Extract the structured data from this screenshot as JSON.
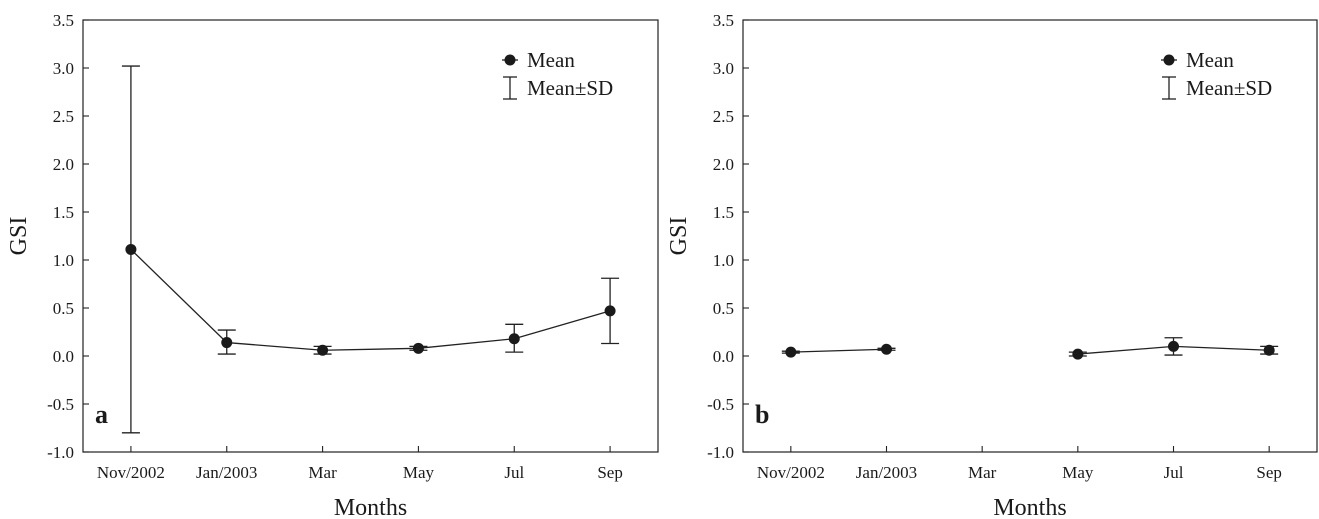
{
  "chart_data": [
    {
      "type": "line",
      "panel_label": "a",
      "xlabel": "Months",
      "ylabel": "GSI",
      "categories": [
        "Nov/2002",
        "Jan/2003",
        "Mar",
        "May",
        "Jul",
        "Sep"
      ],
      "ylim": [
        -1.0,
        3.5
      ],
      "yticks": [
        "-1.0",
        "-0.5",
        "0.0",
        "0.5",
        "1.0",
        "1.5",
        "2.0",
        "2.5",
        "3.0",
        "3.5"
      ],
      "legend": {
        "position": "top-right",
        "mean_label": "Mean",
        "sd_label": "Mean±SD"
      },
      "series": [
        {
          "mean": [
            1.11,
            0.14,
            0.06,
            0.08,
            0.18,
            0.47
          ],
          "lower": [
            -0.8,
            0.02,
            0.02,
            0.06,
            0.04,
            0.13
          ],
          "upper": [
            3.02,
            0.27,
            0.1,
            0.1,
            0.33,
            0.81
          ]
        }
      ]
    },
    {
      "type": "line",
      "panel_label": "b",
      "xlabel": "Months",
      "ylabel": "GSI",
      "categories": [
        "Nov/2002",
        "Jan/2003",
        "Mar",
        "May",
        "Jul",
        "Sep"
      ],
      "ylim": [
        -1.0,
        3.5
      ],
      "yticks": [
        "-1.0",
        "-0.5",
        "0.0",
        "0.5",
        "1.0",
        "1.5",
        "2.0",
        "2.5",
        "3.0",
        "3.5"
      ],
      "legend": {
        "position": "top-right",
        "mean_label": "Mean",
        "sd_label": "Mean±SD"
      },
      "series": [
        {
          "mean": [
            0.04,
            0.07,
            null,
            0.02,
            0.1,
            0.06
          ],
          "lower": [
            0.03,
            0.06,
            null,
            0.0,
            0.01,
            0.02
          ],
          "upper": [
            0.05,
            0.08,
            null,
            0.04,
            0.19,
            0.1
          ]
        }
      ]
    }
  ]
}
